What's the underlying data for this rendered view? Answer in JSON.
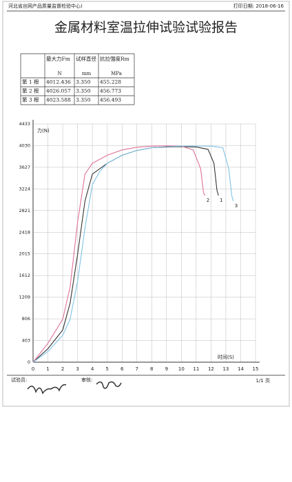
{
  "header": {
    "org": "河北省丝网产品质量监督检验中心)",
    "print_date": "打印日期: 2018-06-16"
  },
  "title": "金属材料室温拉伸试验试验报告",
  "table": {
    "headers": [
      "",
      "最大力Fm",
      "试样直径",
      "抗拉强度Rm"
    ],
    "units": [
      "",
      "N",
      "mm",
      "MPa"
    ],
    "rows": [
      [
        "第 1 根",
        "4012.436",
        "3.350",
        "455.228"
      ],
      [
        "第 2 根",
        "4026.057",
        "3.350",
        "456.773"
      ],
      [
        "第 3 根",
        "4023.588",
        "3.350",
        "456.493"
      ]
    ]
  },
  "chart_data": {
    "type": "line",
    "ylabel": "力(N)",
    "xlabel": "时间(S)",
    "xlim": [
      0,
      15
    ],
    "xticks": [
      0,
      1,
      2,
      3,
      4,
      5,
      6,
      7,
      8,
      9,
      10,
      11,
      12,
      13,
      14,
      15
    ],
    "ylim": [
      0,
      4433
    ],
    "yticks": [
      0,
      403,
      806,
      1209,
      1612,
      2015,
      2418,
      2821,
      3224,
      3627,
      4030,
      4433
    ],
    "grid": true,
    "series": [
      {
        "name": "1",
        "color": "#333333",
        "x": [
          0,
          1,
          2,
          2.5,
          3,
          3.5,
          4,
          5,
          6,
          7,
          8,
          9,
          10,
          11,
          11.8,
          12.2,
          12.4,
          12.5
        ],
        "values": [
          0,
          250,
          600,
          1100,
          2000,
          3000,
          3500,
          3700,
          3850,
          3940,
          3990,
          4005,
          4012,
          4005,
          3960,
          3700,
          3200,
          3100
        ]
      },
      {
        "name": "2",
        "color": "#e0709a",
        "x": [
          0,
          1,
          2,
          2.5,
          3,
          3.5,
          4,
          5,
          6,
          7,
          8,
          9,
          10,
          10.8,
          11.3,
          11.5,
          11.6
        ],
        "values": [
          0,
          350,
          800,
          1400,
          2600,
          3500,
          3700,
          3850,
          3950,
          4000,
          4020,
          4025,
          4020,
          3950,
          3600,
          3150,
          3100
        ]
      },
      {
        "name": "3",
        "color": "#7ec3e6",
        "x": [
          0,
          1,
          2,
          2.5,
          3,
          3.5,
          4,
          4.5,
          5,
          6,
          7,
          8,
          9,
          10,
          11,
          12,
          12.8,
          13.2,
          13.4,
          13.5
        ],
        "values": [
          0,
          200,
          500,
          800,
          1500,
          2500,
          3300,
          3550,
          3700,
          3850,
          3940,
          3990,
          4010,
          4020,
          4023,
          4020,
          3990,
          3600,
          3100,
          3000
        ]
      }
    ]
  },
  "footer": {
    "tester": "试验员:",
    "reviewer": "审核:",
    "page": "1/1 页"
  }
}
